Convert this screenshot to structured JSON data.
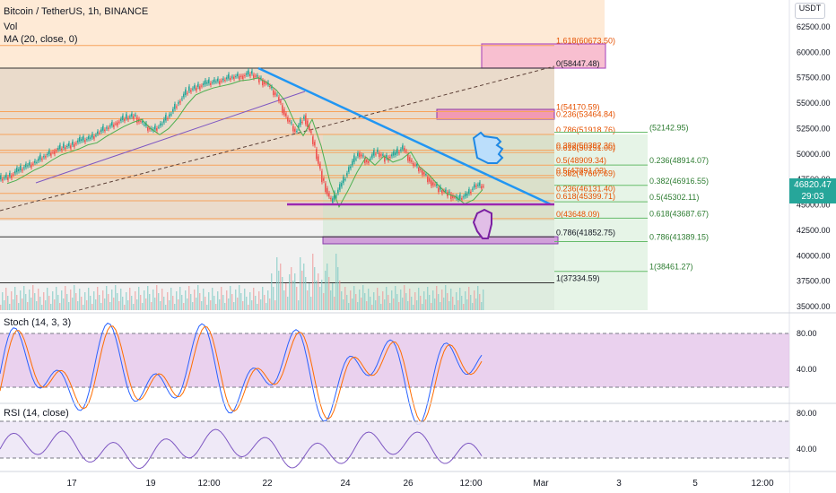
{
  "header": {
    "symbol": "Bitcoin / TetherUS, 1h, BINANCE",
    "vol": "Vol",
    "ma": "MA (20, close, 0)"
  },
  "axis": {
    "currency": "USDT",
    "price_ticks": [
      "62500.00",
      "60000.00",
      "57500.00",
      "55000.00",
      "52500.00",
      "50000.00",
      "47500.00",
      "45000.00",
      "42500.00",
      "40000.00",
      "37500.00",
      "35000.00"
    ],
    "stoch_ticks": [
      "80.00",
      "40.00"
    ],
    "rsi_ticks": [
      "80.00",
      "40.00"
    ],
    "time_ticks": [
      "17",
      "19",
      "12:00",
      "22",
      "24",
      "26",
      "12:00",
      "Mar",
      "3",
      "5",
      "12:00"
    ]
  },
  "last_price": {
    "value": "46820.47",
    "countdown": "29:03"
  },
  "indicators": {
    "stoch": "Stoch (14, 3, 3)",
    "rsi": "RSI (14, close)"
  },
  "fib_labels": {
    "left": [
      "1.618(60673.50)",
      "0(58447.48)",
      "1(54170.59)",
      "0.236(53464.84)",
      "0.786(51918.76)",
      "0.618(50151.00)",
      "0.382(50382.36)",
      "0.5(48909.34)",
      "0.382(47667.69)",
      "0.5(47891.03)",
      "0.236(46131.40)",
      "0.618(45399.71)",
      "0(43648.09)",
      "0.786(41852.75)",
      "1(37334.59)"
    ],
    "right": [
      "(52142.95)",
      "0.236(48914.07)",
      "0.382(46916.55)",
      "0.5(45302.11)",
      "0.618(43687.67)",
      "0.786(41389.15)",
      "1(38461.27)"
    ]
  },
  "chart_data": {
    "type": "line",
    "title": "Bitcoin / TetherUS, 1h, BINANCE",
    "x_labels": [
      "17",
      "19",
      "12:00",
      "22",
      "24",
      "26",
      "12:00",
      "Mar",
      "3",
      "5",
      "12:00"
    ],
    "price_path": [
      [
        0,
        47500
      ],
      [
        10,
        47800
      ],
      [
        20,
        48300
      ],
      [
        30,
        48800
      ],
      [
        40,
        49200
      ],
      [
        50,
        49800
      ],
      [
        60,
        50300
      ],
      [
        70,
        50600
      ],
      [
        80,
        50900
      ],
      [
        90,
        51300
      ],
      [
        100,
        51500
      ],
      [
        110,
        52100
      ],
      [
        120,
        52600
      ],
      [
        130,
        53100
      ],
      [
        140,
        53500
      ],
      [
        150,
        53800
      ],
      [
        160,
        52900
      ],
      [
        170,
        52300
      ],
      [
        180,
        52900
      ],
      [
        190,
        53900
      ],
      [
        200,
        55200
      ],
      [
        210,
        56200
      ],
      [
        220,
        56600
      ],
      [
        230,
        56900
      ],
      [
        240,
        57100
      ],
      [
        250,
        57300
      ],
      [
        260,
        57600
      ],
      [
        270,
        57700
      ],
      [
        280,
        57900
      ],
      [
        290,
        57400
      ],
      [
        300,
        56700
      ],
      [
        310,
        55600
      ],
      [
        320,
        53600
      ],
      [
        330,
        52200
      ],
      [
        340,
        53800
      ],
      [
        350,
        51200
      ],
      [
        360,
        47600
      ],
      [
        370,
        45200
      ],
      [
        380,
        46800
      ],
      [
        390,
        48600
      ],
      [
        400,
        50100
      ],
      [
        410,
        49300
      ],
      [
        420,
        50200
      ],
      [
        430,
        49600
      ],
      [
        440,
        49900
      ],
      [
        450,
        50600
      ],
      [
        460,
        49100
      ],
      [
        470,
        48400
      ],
      [
        480,
        47400
      ],
      [
        490,
        46500
      ],
      [
        500,
        46200
      ],
      [
        510,
        45500
      ],
      [
        520,
        45900
      ],
      [
        530,
        46900
      ],
      [
        540,
        46820
      ]
    ],
    "y_range": [
      35000,
      65000
    ],
    "levels_left": [
      60673.5,
      58447.48,
      54170.59,
      53464.84,
      51918.76,
      50151.0,
      50382.36,
      48909.34,
      47667.69,
      47891.03,
      46131.4,
      45399.71,
      43648.09,
      41852.75,
      37334.59
    ],
    "levels_right": [
      52142.95,
      48914.07,
      46916.55,
      45302.11,
      43687.67,
      41389.15,
      38461.27
    ],
    "stoch_range": [
      0,
      100
    ],
    "rsi_range": [
      0,
      100
    ],
    "colors": {
      "up": "#26a69a",
      "down": "#ef5350",
      "trendline": "#2196f3",
      "support": "#9c27b0",
      "fib_left": "#f7a35c",
      "fib_right": "#a5d6a7",
      "stoch_band": "#e1bee7",
      "rsi_band": "#ede7f6"
    }
  }
}
